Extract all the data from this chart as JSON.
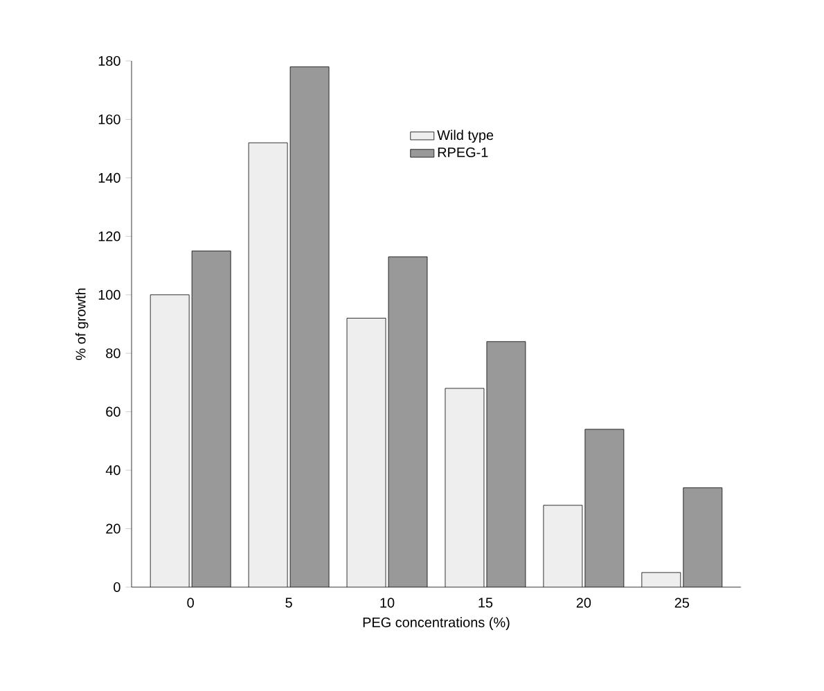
{
  "chart_data": {
    "type": "bar",
    "xlabel": "PEG concentrations (%)",
    "ylabel": "% of growth",
    "categories": [
      "0",
      "5",
      "10",
      "15",
      "20",
      "25"
    ],
    "series": [
      {
        "name": "Wild type",
        "color": "#eeeeee",
        "values": [
          100,
          152,
          92,
          68,
          28,
          5
        ]
      },
      {
        "name": "RPEG-1",
        "color": "#999999",
        "values": [
          115,
          178,
          113,
          84,
          54,
          34
        ]
      }
    ],
    "ylim": [
      0,
      180
    ],
    "yticks": [
      0,
      20,
      40,
      60,
      80,
      100,
      120,
      140,
      160,
      180
    ],
    "legend": "top right",
    "grid": false
  }
}
